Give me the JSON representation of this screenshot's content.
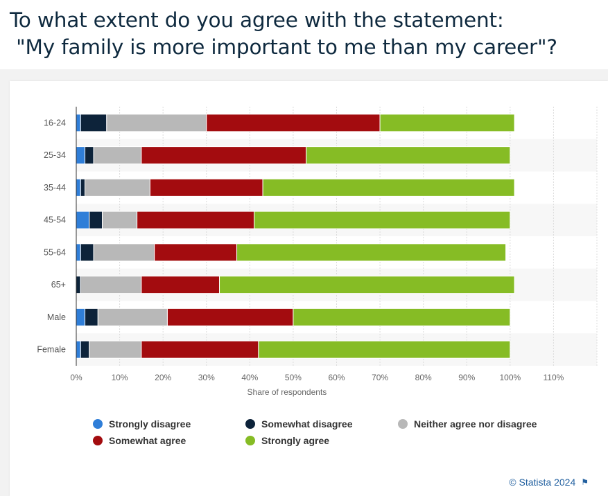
{
  "title_lines": [
    "To what extent do you agree with the statement:",
    " \"My family is more important to me than my career\"?"
  ],
  "credit": "© Statista 2024",
  "icons": {
    "credit_flag": "flag-icon"
  },
  "chart_data": {
    "type": "bar",
    "orientation": "horizontal",
    "stacked": true,
    "categories": [
      "16-24",
      "25-34",
      "35-44",
      "45-54",
      "55-64",
      "65+",
      "Male",
      "Female"
    ],
    "series": [
      {
        "name": "Strongly disagree",
        "color": "#2f7ed8",
        "values": [
          1,
          2,
          1,
          3,
          1,
          0,
          2,
          1
        ]
      },
      {
        "name": "Somewhat disagree",
        "color": "#0d233a",
        "values": [
          6,
          2,
          1,
          3,
          3,
          1,
          3,
          2
        ]
      },
      {
        "name": "Neither agree nor disagree",
        "color": "#b8b8b8",
        "values": [
          23,
          11,
          15,
          8,
          14,
          14,
          16,
          12
        ]
      },
      {
        "name": "Somewhat agree",
        "color": "#a30c0f",
        "values": [
          40,
          38,
          26,
          27,
          19,
          18,
          29,
          27
        ]
      },
      {
        "name": "Strongly agree",
        "color": "#86bc25",
        "values": [
          31,
          47,
          58,
          59,
          62,
          68,
          50,
          58
        ]
      }
    ],
    "xlabel": "Share of respondents",
    "ylabel": "",
    "xlim": [
      0,
      120
    ],
    "x_ticks": [
      "0%",
      "10%",
      "20%",
      "30%",
      "40%",
      "50%",
      "60%",
      "70%",
      "80%",
      "90%",
      "100%",
      "110%"
    ],
    "grid": true,
    "legend_placement": "bottom"
  }
}
